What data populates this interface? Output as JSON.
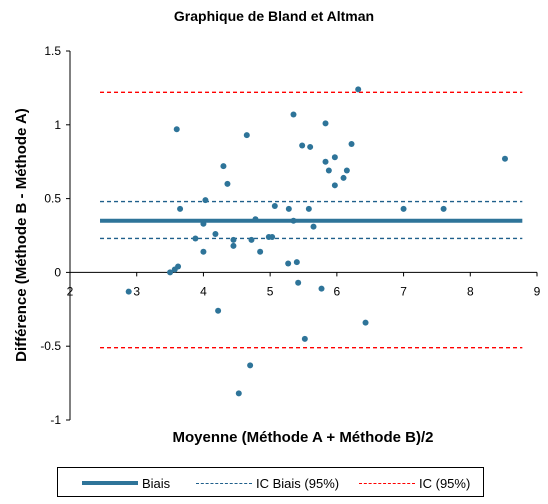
{
  "chart_data": {
    "type": "scatter",
    "title": "Graphique de Bland et Altman",
    "xlabel": "Moyenne (Méthode A + Méthode B)/2",
    "ylabel": "Différence (Méthode B - Méthode A)",
    "xlim": [
      2,
      9
    ],
    "ylim": [
      -1,
      1.5
    ],
    "xticks": [
      "2",
      "3",
      "4",
      "5",
      "6",
      "7",
      "8",
      "9"
    ],
    "yticks": [
      "-1",
      "-0.5",
      "0",
      "0.5",
      "1",
      "1.5"
    ],
    "grid": false,
    "legend_position": "bottom",
    "points": [
      {
        "x": 2.88,
        "y": -0.13
      },
      {
        "x": 3.5,
        "y": 0.0
      },
      {
        "x": 3.57,
        "y": 0.02
      },
      {
        "x": 3.62,
        "y": 0.04
      },
      {
        "x": 3.6,
        "y": 0.97
      },
      {
        "x": 3.65,
        "y": 0.43
      },
      {
        "x": 3.88,
        "y": 0.23
      },
      {
        "x": 4.0,
        "y": 0.14
      },
      {
        "x": 4.0,
        "y": 0.33
      },
      {
        "x": 4.03,
        "y": 0.49
      },
      {
        "x": 4.18,
        "y": 0.26
      },
      {
        "x": 4.22,
        "y": -0.26
      },
      {
        "x": 4.3,
        "y": 0.72
      },
      {
        "x": 4.36,
        "y": 0.6
      },
      {
        "x": 4.45,
        "y": 0.22
      },
      {
        "x": 4.45,
        "y": 0.18
      },
      {
        "x": 4.53,
        "y": -0.82
      },
      {
        "x": 4.65,
        "y": 0.93
      },
      {
        "x": 4.7,
        "y": -0.63
      },
      {
        "x": 4.72,
        "y": 0.22
      },
      {
        "x": 4.78,
        "y": 0.36
      },
      {
        "x": 4.85,
        "y": 0.14
      },
      {
        "x": 4.98,
        "y": 0.24
      },
      {
        "x": 5.03,
        "y": 0.24
      },
      {
        "x": 5.07,
        "y": 0.45
      },
      {
        "x": 5.27,
        "y": 0.06
      },
      {
        "x": 5.28,
        "y": 0.43
      },
      {
        "x": 5.35,
        "y": 1.07
      },
      {
        "x": 5.35,
        "y": 0.35
      },
      {
        "x": 5.4,
        "y": 0.07
      },
      {
        "x": 5.42,
        "y": -0.07
      },
      {
        "x": 5.48,
        "y": 0.86
      },
      {
        "x": 5.52,
        "y": -0.45
      },
      {
        "x": 5.58,
        "y": 0.43
      },
      {
        "x": 5.6,
        "y": 0.85
      },
      {
        "x": 5.65,
        "y": 0.31
      },
      {
        "x": 5.77,
        "y": -0.11
      },
      {
        "x": 5.83,
        "y": 1.01
      },
      {
        "x": 5.83,
        "y": 0.75
      },
      {
        "x": 5.88,
        "y": 0.69
      },
      {
        "x": 5.97,
        "y": 0.78
      },
      {
        "x": 5.97,
        "y": 0.59
      },
      {
        "x": 6.1,
        "y": 0.64
      },
      {
        "x": 6.15,
        "y": 0.69
      },
      {
        "x": 6.22,
        "y": 0.87
      },
      {
        "x": 6.32,
        "y": 1.24
      },
      {
        "x": 6.43,
        "y": -0.34
      },
      {
        "x": 7.0,
        "y": 0.43
      },
      {
        "x": 7.6,
        "y": 0.43
      },
      {
        "x": 8.52,
        "y": 0.77
      }
    ],
    "lines": [
      {
        "name": "Biais",
        "y": 0.35,
        "style": "solid",
        "color": "#2e7499"
      },
      {
        "name": "IC Biais (95%)",
        "y": 0.48,
        "style": "dashed",
        "color": "#1f5f8b"
      },
      {
        "name": "IC Biais (95%)",
        "y": 0.23,
        "style": "dashed",
        "color": "#1f5f8b"
      },
      {
        "name": "IC (95%)",
        "y": 1.22,
        "style": "dashed",
        "color": "#ff0000"
      },
      {
        "name": "IC (95%)",
        "y": -0.51,
        "style": "dashed",
        "color": "#ff0000"
      }
    ],
    "lines_x_range": [
      2.45,
      8.78
    ],
    "marker_color": "#2e7499"
  },
  "legend": {
    "items": [
      {
        "label": "Biais",
        "style": "solid",
        "color": "#2e7499"
      },
      {
        "label": "IC Biais (95%)",
        "style": "dashed",
        "color": "#1f5f8b"
      },
      {
        "label": "IC (95%)",
        "style": "dashed",
        "color": "#ff0000"
      }
    ]
  }
}
